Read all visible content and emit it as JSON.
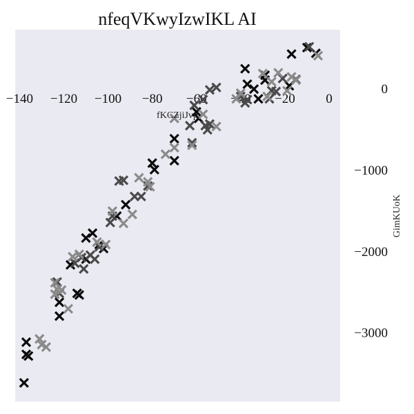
{
  "chart_data": {
    "type": "scatter",
    "title": "nfeqVKwyIzwIKL AI",
    "xlabel": "fKCZjiJvp",
    "ylabel": "GimKUoK",
    "xlim": [
      -142,
      5
    ],
    "ylim": [
      -3850,
      720
    ],
    "x_ticks": [
      -140,
      -120,
      -100,
      -80,
      -60,
      -40,
      -20,
      0
    ],
    "y_ticks": [
      -3000,
      -2000,
      -1000,
      0
    ],
    "x_tick_labels": [
      "−140",
      "−120",
      "−100",
      "−80",
      "−60",
      "−40",
      "−20",
      "0"
    ],
    "y_tick_labels": [
      "−3000",
      "−2000",
      "−1000",
      "0"
    ],
    "marker": "x",
    "background_color": "#eaeaf2",
    "grid": false,
    "colors": [
      "#0a0a0a",
      "#4a4a4a",
      "#8a8a8a"
    ],
    "series": [
      {
        "color": "#0a0a0a",
        "points": [
          [
            -138,
            -3620
          ],
          [
            -137,
            -3120
          ],
          [
            -137,
            -3270
          ],
          [
            -136,
            -3290
          ],
          [
            -122,
            -2800
          ],
          [
            -122,
            -2630
          ],
          [
            -117,
            -2170
          ],
          [
            -114,
            -2520
          ],
          [
            -113,
            -2540
          ],
          [
            -110,
            -2100
          ],
          [
            -110,
            -1840
          ],
          [
            -107,
            -1780
          ],
          [
            -104,
            -1920
          ],
          [
            -102,
            -1970
          ],
          [
            -96,
            -1570
          ],
          [
            -92,
            -1430
          ],
          [
            -80,
            -920
          ],
          [
            -79,
            -1000
          ],
          [
            -70,
            -620
          ],
          [
            -70,
            -890
          ],
          [
            -60,
            -290
          ],
          [
            -59,
            -370
          ],
          [
            -38,
            240
          ],
          [
            -37,
            50
          ],
          [
            -34,
            -10
          ],
          [
            -32,
            -130
          ],
          [
            -29,
            160
          ],
          [
            -29,
            100
          ],
          [
            -18,
            30
          ],
          [
            -17,
            420
          ],
          [
            -10,
            500
          ],
          [
            -6,
            430
          ]
        ]
      },
      {
        "color": "#4a4a4a",
        "points": [
          [
            -123,
            -2380
          ],
          [
            -122,
            -2520
          ],
          [
            -115,
            -2150
          ],
          [
            -112,
            -2080
          ],
          [
            -111,
            -2220
          ],
          [
            -108,
            -2050
          ],
          [
            -106,
            -2100
          ],
          [
            -104,
            -1950
          ],
          [
            -99,
            -1650
          ],
          [
            -98,
            -1570
          ],
          [
            -95,
            -1140
          ],
          [
            -93,
            -1130
          ],
          [
            -88,
            -1330
          ],
          [
            -85,
            -1330
          ],
          [
            -82,
            -1200
          ],
          [
            -63,
            -460
          ],
          [
            -62,
            -670
          ],
          [
            -61,
            -210
          ],
          [
            -57,
            -140
          ],
          [
            -56,
            -460
          ],
          [
            -55,
            -510
          ],
          [
            -54,
            -440
          ],
          [
            -54,
            -20
          ],
          [
            -51,
            10
          ],
          [
            -40,
            -100
          ],
          [
            -38,
            -180
          ],
          [
            -37,
            -140
          ],
          [
            -27,
            -130
          ],
          [
            -26,
            -30
          ],
          [
            -24,
            -40
          ],
          [
            -21,
            120
          ],
          [
            -15,
            110
          ],
          [
            -9,
            510
          ]
        ]
      },
      {
        "color": "#8a8a8a",
        "points": [
          [
            -131,
            -3080
          ],
          [
            -130,
            -3150
          ],
          [
            -128,
            -3180
          ],
          [
            -124,
            -2390
          ],
          [
            -124,
            -2530
          ],
          [
            -123,
            -2470
          ],
          [
            -121,
            -2480
          ],
          [
            -118,
            -2710
          ],
          [
            -116,
            -2070
          ],
          [
            -113,
            -2040
          ],
          [
            -105,
            -1890
          ],
          [
            -101,
            -1920
          ],
          [
            -98,
            -1510
          ],
          [
            -93,
            -1660
          ],
          [
            -89,
            -1550
          ],
          [
            -86,
            -1100
          ],
          [
            -82,
            -1150
          ],
          [
            -81,
            -1210
          ],
          [
            -74,
            -810
          ],
          [
            -70,
            -730
          ],
          [
            -70,
            -370
          ],
          [
            -62,
            -700
          ],
          [
            -57,
            -320
          ],
          [
            -51,
            -470
          ],
          [
            -42,
            -130
          ],
          [
            -40,
            -60
          ],
          [
            -30,
            180
          ],
          [
            -28,
            -100
          ],
          [
            -26,
            80
          ],
          [
            -23,
            190
          ],
          [
            -19,
            -30
          ],
          [
            -17,
            140
          ],
          [
            -15,
            100
          ],
          [
            -5,
            400
          ]
        ]
      }
    ]
  }
}
